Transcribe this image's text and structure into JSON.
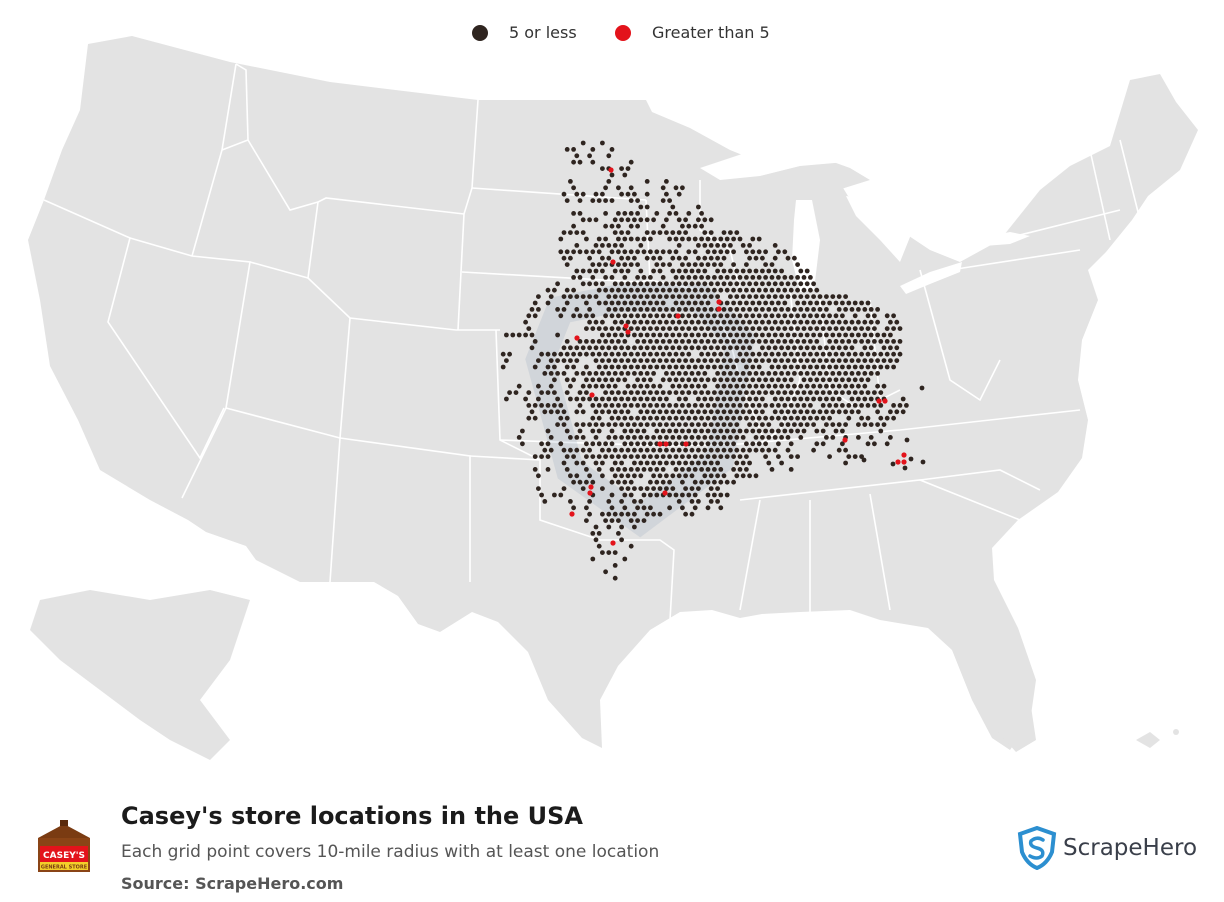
{
  "legend": {
    "items": [
      {
        "label": "5 or less",
        "color": "#2f2520"
      },
      {
        "label": "Greater than 5",
        "color": "#e3131b"
      }
    ]
  },
  "colors": {
    "land": "#e3e3e3",
    "border": "#ffffff",
    "dot_low": "#2f2520",
    "dot_high": "#e3131b"
  },
  "footer": {
    "title": "Casey's store locations in the USA",
    "subtitle": "Each grid point covers 10-mile radius with at least one location",
    "source": "Source: ScrapeHero.com"
  },
  "logo": {
    "line1": "CASEY'S",
    "line2": "GENERAL STORE"
  },
  "brand": {
    "name": "ScrapeHero"
  }
}
